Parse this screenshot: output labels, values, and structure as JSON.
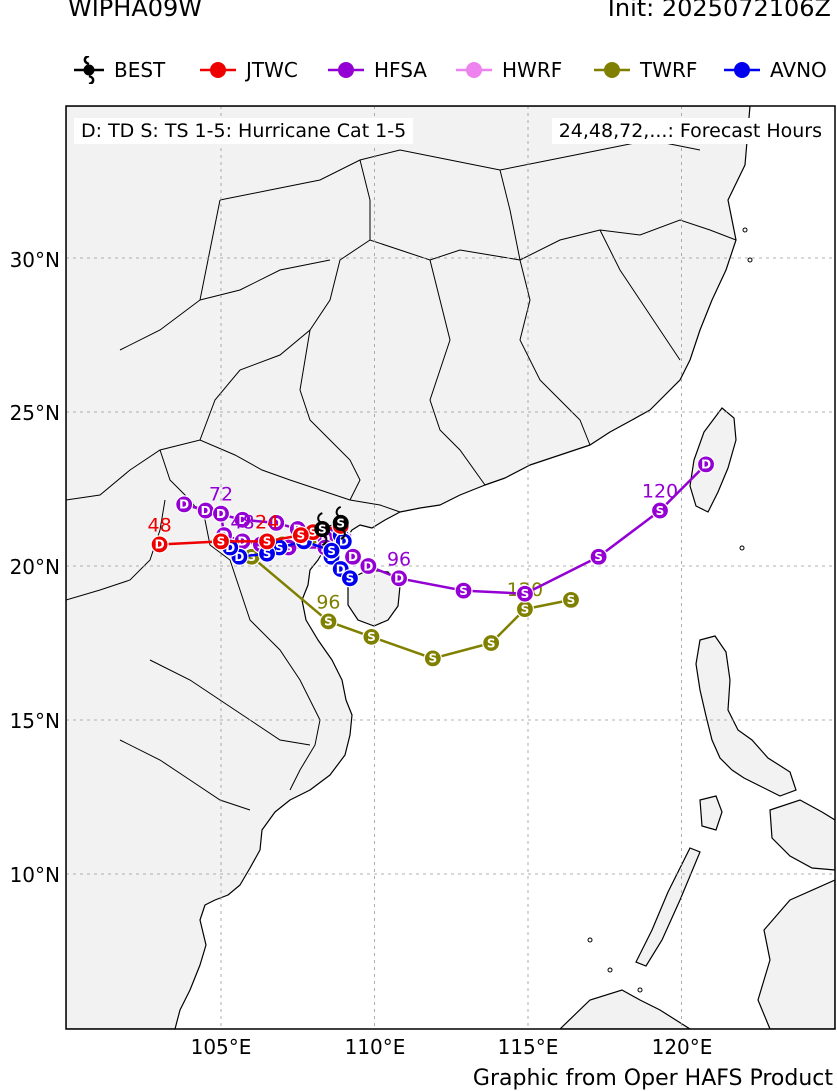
{
  "header": {
    "storm_id": "WIPHA09W",
    "init": "Init: 2025072106Z"
  },
  "legend": [
    {
      "name": "BEST",
      "color": "#000000",
      "icon": "typhoon-icon"
    },
    {
      "name": "JTWC",
      "color": "#ee0000"
    },
    {
      "name": "HFSA",
      "color": "#9400d3"
    },
    {
      "name": "HWRF",
      "color": "#ee82ee"
    },
    {
      "name": "TWRF",
      "color": "#808000"
    },
    {
      "name": "AVNO",
      "color": "#0000ee"
    }
  ],
  "info": {
    "intensity_key": "D: TD  S: TS  1-5: Hurricane Cat 1-5",
    "hours_key": "24,48,72,...: Forecast Hours"
  },
  "axes": {
    "lat_ticks": [
      "30°N",
      "25°N",
      "20°N",
      "15°N",
      "10°N"
    ],
    "lon_ticks": [
      "105°E",
      "110°E",
      "115°E",
      "120°E"
    ]
  },
  "chart_data": {
    "type": "map",
    "lon_range": [
      100,
      125
    ],
    "lat_range": [
      5,
      35
    ],
    "grid": true,
    "tracks": [
      {
        "name": "BEST",
        "color": "#000000",
        "points": [
          {
            "lon": 108.3,
            "lat": 21.2,
            "cat": "S"
          },
          {
            "lon": 108.9,
            "lat": 21.4,
            "cat": "S"
          }
        ]
      },
      {
        "name": "TWRF",
        "color": "#808000",
        "points": [
          {
            "lon": 108.9,
            "lat": 21.0,
            "cat": "S"
          },
          {
            "lon": 108.4,
            "lat": 20.8,
            "cat": "S"
          },
          {
            "lon": 107.0,
            "lat": 20.7,
            "cat": "S"
          },
          {
            "lon": 106.0,
            "lat": 20.3,
            "cat": "S"
          },
          {
            "lon": 108.5,
            "lat": 18.2,
            "cat": "S",
            "label": "96"
          },
          {
            "lon": 109.9,
            "lat": 17.7,
            "cat": "S"
          },
          {
            "lon": 111.9,
            "lat": 17.0,
            "cat": "S"
          },
          {
            "lon": 113.8,
            "lat": 17.5,
            "cat": "S"
          },
          {
            "lon": 114.9,
            "lat": 18.6,
            "cat": "S",
            "label": "120"
          },
          {
            "lon": 116.4,
            "lat": 18.9,
            "cat": "S"
          }
        ]
      },
      {
        "name": "HFSA",
        "color": "#9400d3",
        "points": [
          {
            "lon": 108.8,
            "lat": 21.1,
            "cat": "S"
          },
          {
            "lon": 108.4,
            "lat": 20.9,
            "cat": "D"
          },
          {
            "lon": 107.5,
            "lat": 21.2,
            "cat": "D"
          },
          {
            "lon": 106.8,
            "lat": 21.4,
            "cat": "D"
          },
          {
            "lon": 105.7,
            "lat": 21.5,
            "cat": "D"
          },
          {
            "lon": 104.5,
            "lat": 21.8,
            "cat": "D"
          },
          {
            "lon": 103.8,
            "lat": 22.0,
            "cat": "D"
          },
          {
            "lon": 105.0,
            "lat": 21.7,
            "cat": "D",
            "label": "72"
          },
          {
            "lon": 105.1,
            "lat": 21.0,
            "cat": "D"
          },
          {
            "lon": 105.7,
            "lat": 20.8,
            "cat": "D",
            "label": "48"
          },
          {
            "lon": 106.3,
            "lat": 20.7,
            "cat": "S"
          },
          {
            "lon": 107.2,
            "lat": 20.6,
            "cat": "S"
          },
          {
            "lon": 108.4,
            "lat": 20.6,
            "cat": "D"
          },
          {
            "lon": 109.0,
            "lat": 20.9,
            "cat": "D"
          },
          {
            "lon": 109.3,
            "lat": 20.3,
            "cat": "D"
          },
          {
            "lon": 109.8,
            "lat": 20.0,
            "cat": "D"
          },
          {
            "lon": 110.8,
            "lat": 19.6,
            "cat": "D",
            "label": "96"
          },
          {
            "lon": 112.9,
            "lat": 19.2,
            "cat": "S"
          },
          {
            "lon": 114.9,
            "lat": 19.1,
            "cat": "S"
          },
          {
            "lon": 117.3,
            "lat": 20.3,
            "cat": "S"
          },
          {
            "lon": 119.3,
            "lat": 21.8,
            "cat": "S",
            "label": "120"
          },
          {
            "lon": 120.8,
            "lat": 23.3,
            "cat": "D"
          }
        ]
      },
      {
        "name": "AVNO",
        "color": "#0000ee",
        "points": [
          {
            "lon": 108.9,
            "lat": 21.0,
            "cat": "D"
          },
          {
            "lon": 109.0,
            "lat": 20.8,
            "cat": "D"
          },
          {
            "lon": 108.6,
            "lat": 20.3,
            "cat": "D"
          },
          {
            "lon": 108.9,
            "lat": 19.9,
            "cat": "D"
          },
          {
            "lon": 109.2,
            "lat": 19.6,
            "cat": "S"
          },
          {
            "lon": 108.6,
            "lat": 20.5,
            "cat": "S"
          },
          {
            "lon": 107.7,
            "lat": 20.8,
            "cat": "S"
          },
          {
            "lon": 106.9,
            "lat": 20.6,
            "cat": "S"
          },
          {
            "lon": 106.5,
            "lat": 20.4,
            "cat": "S"
          },
          {
            "lon": 105.6,
            "lat": 20.3,
            "cat": "D"
          },
          {
            "lon": 105.3,
            "lat": 20.6,
            "cat": "D"
          }
        ]
      },
      {
        "name": "JTWC",
        "color": "#ee0000",
        "points": [
          {
            "lon": 108.9,
            "lat": 21.3,
            "cat": "S"
          },
          {
            "lon": 108.0,
            "lat": 21.1,
            "cat": "S"
          },
          {
            "lon": 107.6,
            "lat": 21.0,
            "cat": "S"
          },
          {
            "lon": 106.5,
            "lat": 20.8,
            "cat": "S",
            "label": "24"
          },
          {
            "lon": 105.0,
            "lat": 20.8,
            "cat": "S"
          },
          {
            "lon": 103.0,
            "lat": 20.7,
            "cat": "D",
            "label": "48"
          }
        ]
      }
    ]
  }
}
